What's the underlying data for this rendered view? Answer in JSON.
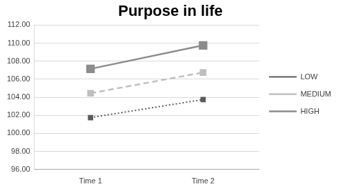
{
  "chart_data": {
    "type": "line",
    "title": "Purpose in life",
    "categories": [
      "Time 1",
      "Time 2"
    ],
    "series": [
      {
        "name": "LOW",
        "color": "#595959",
        "values": [
          101.75,
          103.75
        ],
        "marker": "square",
        "line_style": "dotted"
      },
      {
        "name": "MEDIUM",
        "color": "#bfbfbf",
        "values": [
          104.45,
          106.75
        ],
        "marker": "square",
        "line_style": "dashed"
      },
      {
        "name": "HIGH",
        "color": "#8c8c8c",
        "values": [
          107.15,
          109.75
        ],
        "marker": "square",
        "line_style": "solid"
      }
    ],
    "ylim": [
      96,
      112
    ],
    "yticks": [
      {
        "value": 96,
        "label": "96.00"
      },
      {
        "value": 98,
        "label": "98.00"
      },
      {
        "value": 100,
        "label": "100.00"
      },
      {
        "value": 102,
        "label": "102.00"
      },
      {
        "value": 104,
        "label": "104.00"
      },
      {
        "value": 106,
        "label": "106.00"
      },
      {
        "value": 108,
        "label": "108.00"
      },
      {
        "value": 110,
        "label": "110.00"
      },
      {
        "value": 112,
        "label": "112.00"
      }
    ],
    "grid": true,
    "legend": "right"
  }
}
